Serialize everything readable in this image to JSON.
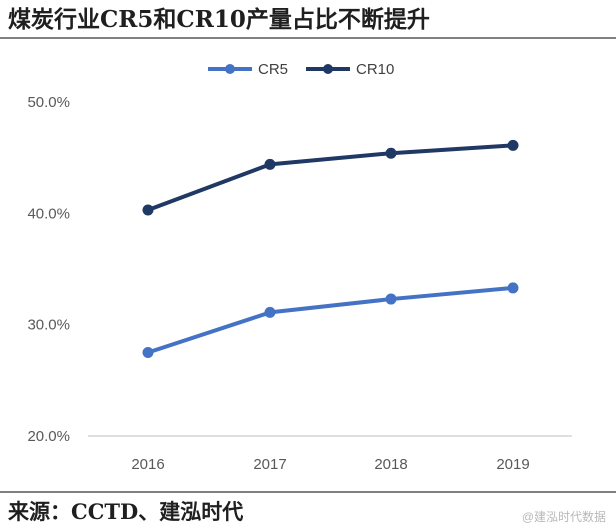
{
  "header": {
    "title": "煤炭行业CR5和CR10产量占比不断提升"
  },
  "footer": {
    "source": "来源：CCTD、建泓时代",
    "watermark": "@建泓时代数据"
  },
  "colors": {
    "cr5": "#4472C4",
    "cr10": "#1F3864",
    "axis": "#BFBFBF"
  },
  "chart_data": {
    "type": "line",
    "categories": [
      "2016",
      "2017",
      "2018",
      "2019"
    ],
    "series": [
      {
        "name": "CR5",
        "values": [
          27.5,
          31.1,
          32.3,
          33.3
        ]
      },
      {
        "name": "CR10",
        "values": [
          40.3,
          44.4,
          45.4,
          46.1
        ]
      }
    ],
    "ylim": [
      20,
      50
    ],
    "yticks": [
      "50.0%",
      "40.0%",
      "30.0%",
      "20.0%"
    ],
    "ytick_values": [
      50,
      40,
      30,
      20
    ],
    "grid": false,
    "legend_position": "top-center",
    "xlabel": "",
    "ylabel": ""
  }
}
